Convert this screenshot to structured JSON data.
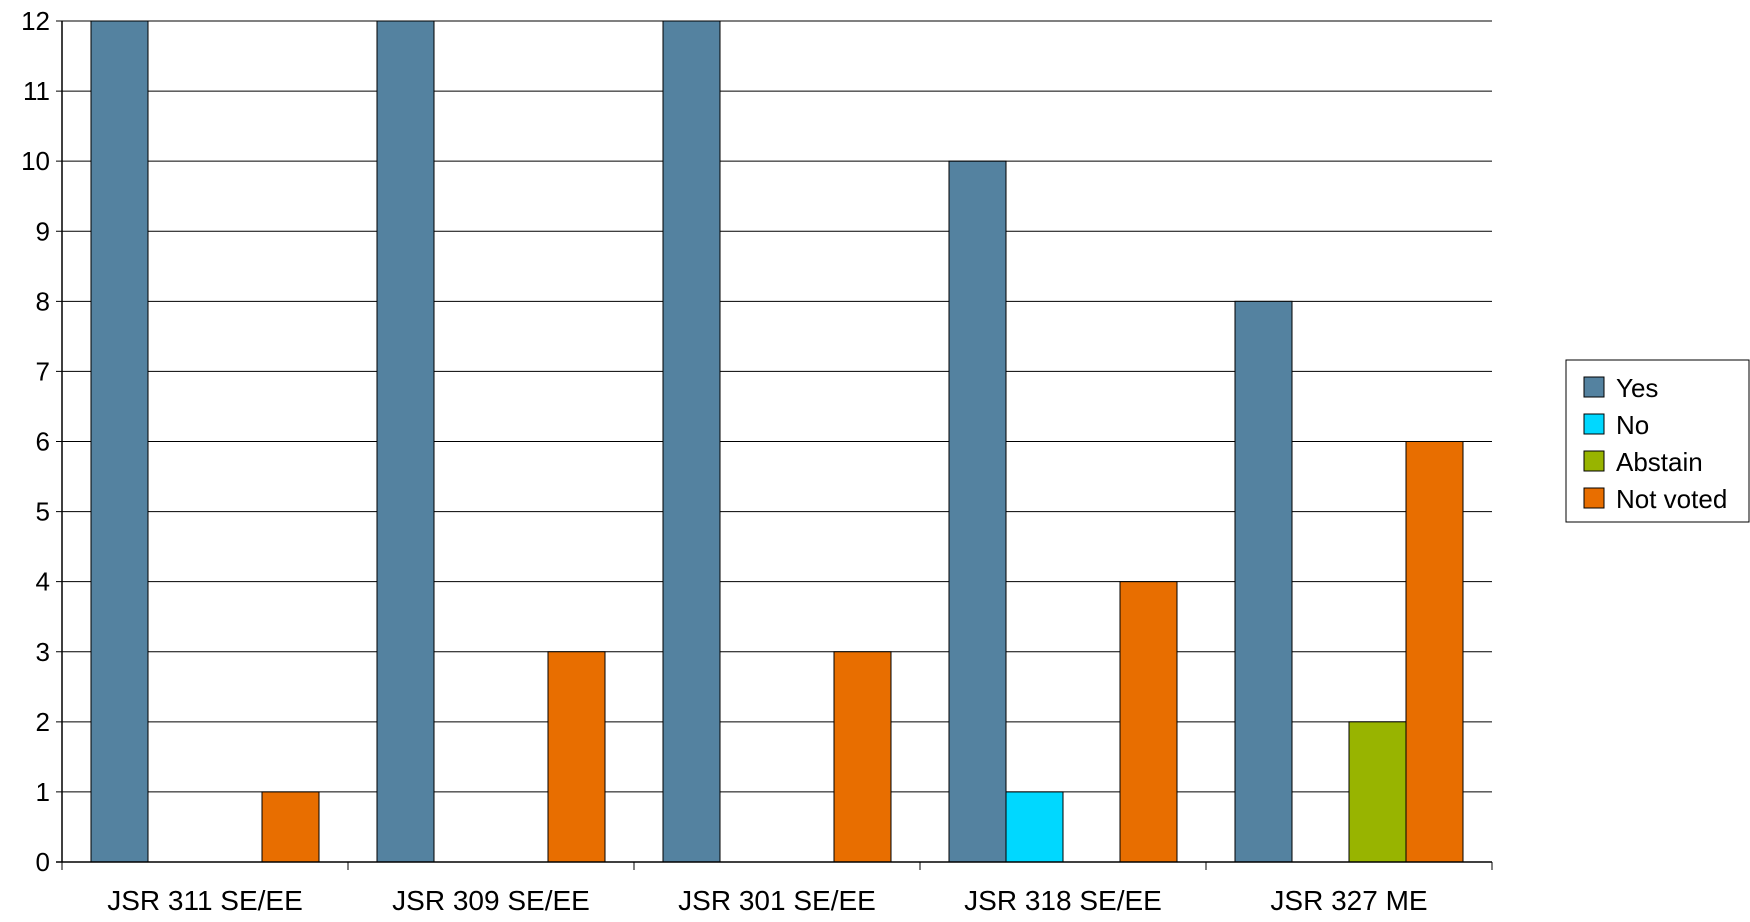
{
  "chart_data": {
    "type": "bar",
    "title": "",
    "xlabel": "",
    "ylabel": "",
    "categories": [
      "JSR 311 SE/EE",
      "JSR 309 SE/EE",
      "JSR 301 SE/EE",
      "JSR 318 SE/EE",
      "JSR 327 ME"
    ],
    "series": [
      {
        "name": "Yes",
        "color": "#5482A0",
        "values": [
          12,
          12,
          12,
          10,
          8
        ]
      },
      {
        "name": "No",
        "color": "#00D8FF",
        "values": [
          0,
          0,
          0,
          1,
          0
        ]
      },
      {
        "name": "Abstain",
        "color": "#98B400",
        "values": [
          0,
          0,
          0,
          0,
          2
        ]
      },
      {
        "name": "Not voted",
        "color": "#E86E00",
        "values": [
          1,
          3,
          3,
          4,
          6
        ]
      }
    ],
    "ylim": [
      0,
      12
    ],
    "yticks": [
      0,
      1,
      2,
      3,
      4,
      5,
      6,
      7,
      8,
      9,
      10,
      11,
      12
    ],
    "grid": true,
    "legend_position": "right"
  }
}
